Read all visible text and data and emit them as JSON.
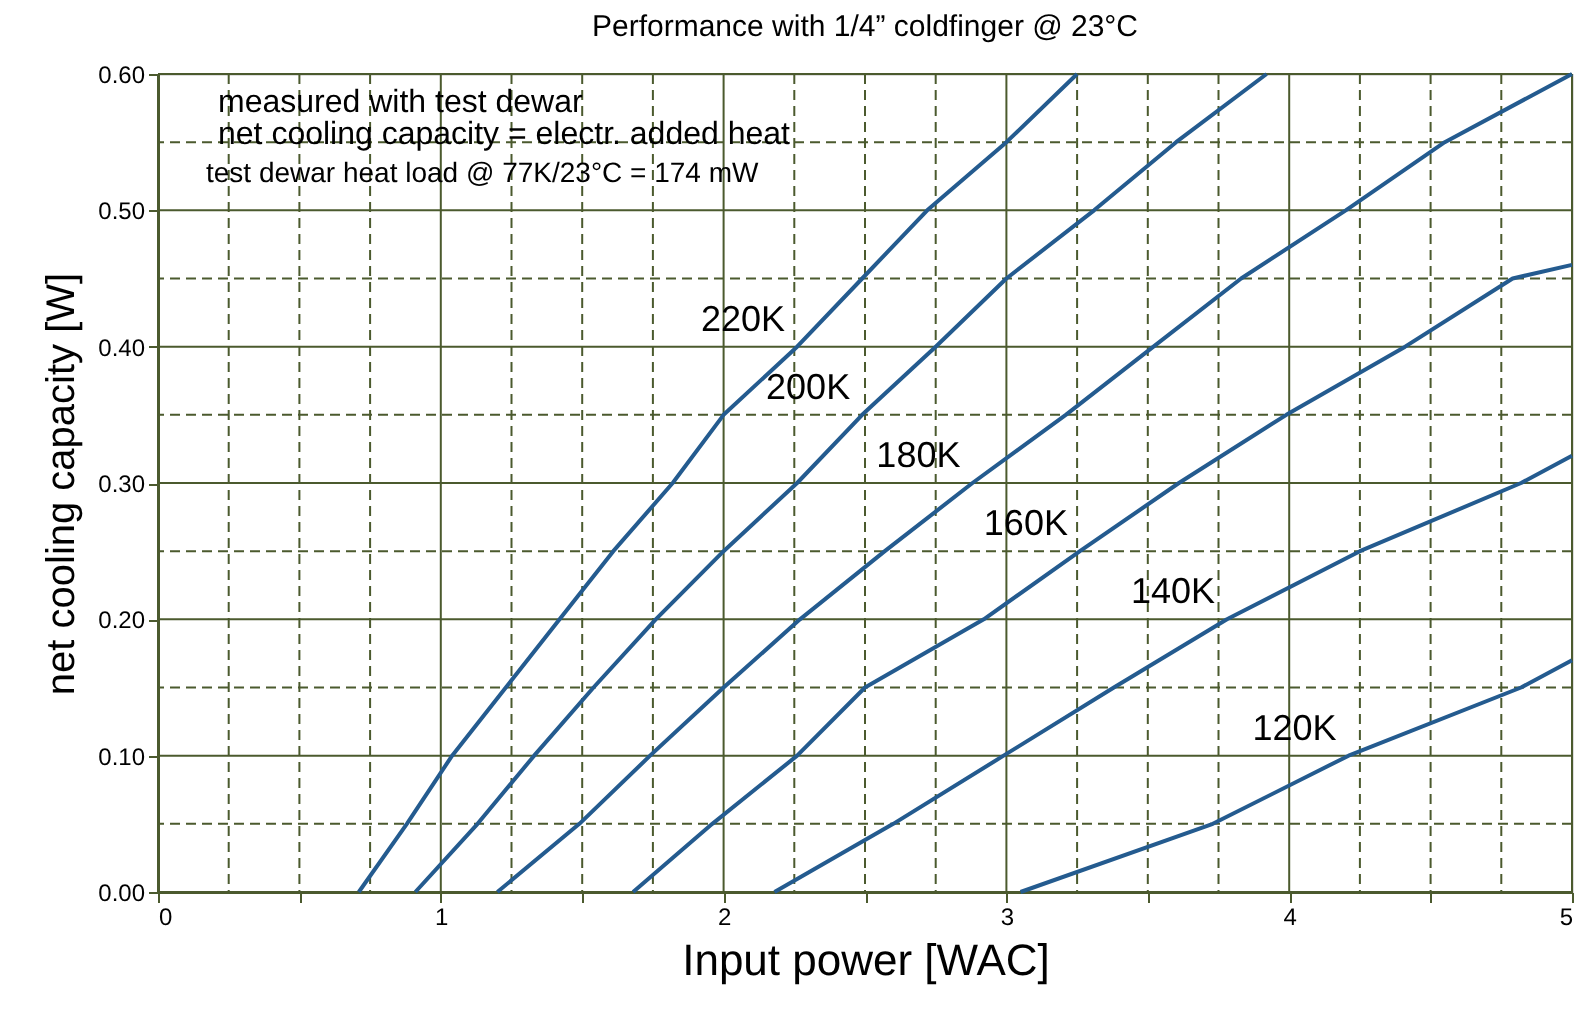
{
  "chart_data": {
    "type": "line",
    "title": "Performance with 1/4” coldfinger @ 23°C",
    "xlabel": "Input power [WAC]",
    "ylabel": "net cooling capacity [W]",
    "xlim": [
      0,
      5
    ],
    "xticks": [
      0,
      {
        "value": 0.25,
        "label": null
      },
      {
        "value": 0.5,
        "label": null
      },
      {
        "value": 0.75,
        "label": null
      },
      1,
      {
        "value": 1.25,
        "label": null
      },
      {
        "value": 1.5,
        "label": null
      },
      {
        "value": 1.75,
        "label": null
      },
      2,
      {
        "value": 2.25,
        "label": null
      },
      {
        "value": 2.5,
        "label": null
      },
      {
        "value": 2.75,
        "label": null
      },
      3,
      {
        "value": 3.25,
        "label": null
      },
      {
        "value": 3.5,
        "label": null
      },
      {
        "value": 3.75,
        "label": null
      },
      4,
      {
        "value": 4.25,
        "label": null
      },
      {
        "value": 4.5,
        "label": null
      },
      {
        "value": 4.75,
        "label": null
      },
      5
    ],
    "ylim": [
      0,
      0.6
    ],
    "yticks": [
      {
        "value": 0,
        "label": "0.00"
      },
      {
        "value": 0.05,
        "label": null
      },
      {
        "value": 0.1,
        "label": "0.10"
      },
      {
        "value": 0.15,
        "label": null
      },
      {
        "value": 0.2,
        "label": "0.20"
      },
      {
        "value": 0.25,
        "label": null
      },
      {
        "value": 0.3,
        "label": "0.30"
      },
      {
        "value": 0.35,
        "label": null
      },
      {
        "value": 0.4,
        "label": "0.40"
      },
      {
        "value": 0.45,
        "label": null
      },
      {
        "value": 0.5,
        "label": "0.50"
      },
      {
        "value": 0.55,
        "label": null
      },
      {
        "value": 0.6,
        "label": "0.60"
      }
    ],
    "grid": true,
    "marker": "none",
    "line_style": "solid",
    "series": [
      {
        "name": "220K",
        "color": "#245b8f",
        "x": [
          0.71,
          0.88,
          1.04,
          1.23,
          1.42,
          1.61,
          1.82,
          2.0,
          2.26,
          2.49,
          2.72,
          3.0,
          3.25
        ],
        "values": [
          0,
          0.05,
          0.1,
          0.15,
          0.2,
          0.25,
          0.3,
          0.35,
          0.4,
          0.45,
          0.5,
          0.55,
          0.6
        ]
      },
      {
        "name": "200K",
        "color": "#245b8f",
        "x": [
          0.91,
          1.13,
          1.33,
          1.54,
          1.76,
          2.0,
          2.26,
          2.49,
          2.75,
          3.0,
          3.31,
          3.6,
          3.92
        ],
        "values": [
          0,
          0.05,
          0.1,
          0.15,
          0.2,
          0.25,
          0.3,
          0.35,
          0.4,
          0.45,
          0.5,
          0.55,
          0.6
        ]
      },
      {
        "name": "180K",
        "color": "#245b8f",
        "x": [
          1.2,
          1.49,
          1.74,
          2.0,
          2.27,
          2.57,
          2.88,
          3.21,
          3.52,
          3.83,
          4.2,
          4.55,
          5.0
        ],
        "values": [
          0,
          0.05,
          0.1,
          0.15,
          0.2,
          0.25,
          0.3,
          0.35,
          0.4,
          0.45,
          0.5,
          0.55,
          0.6
        ]
      },
      {
        "name": "160K",
        "color": "#245b8f",
        "x": [
          1.68,
          1.96,
          2.26,
          2.5,
          2.92,
          3.26,
          3.61,
          3.99,
          4.41,
          4.79,
          5.0
        ],
        "values": [
          0,
          0.05,
          0.1,
          0.15,
          0.2,
          0.25,
          0.3,
          0.35,
          0.4,
          0.45,
          0.46
        ]
      },
      {
        "name": "140K",
        "color": "#245b8f",
        "x": [
          2.18,
          2.6,
          2.99,
          3.38,
          3.78,
          4.25,
          4.82,
          5.0
        ],
        "values": [
          0,
          0.05,
          0.1,
          0.15,
          0.2,
          0.25,
          0.3,
          0.32
        ]
      },
      {
        "name": "120K",
        "color": "#245b8f",
        "x": [
          3.05,
          3.73,
          4.21,
          4.82,
          5.0
        ],
        "values": [
          0,
          0.05,
          0.1,
          0.15,
          0.17
        ]
      }
    ],
    "annotations": [
      "measured with test dewar",
      "net cooling capacity = electr. added heat",
      "test dewar heat load @ 77K/23°C = 174 mW"
    ]
  }
}
